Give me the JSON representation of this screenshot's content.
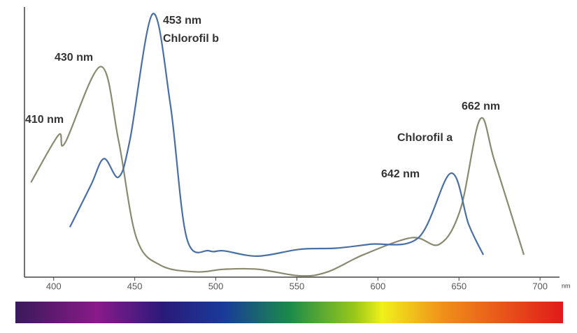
{
  "chart_data": {
    "type": "line",
    "x_label": "nm",
    "xlim": [
      382,
      712
    ],
    "xticks": [
      400,
      450,
      500,
      550,
      600,
      650,
      700
    ],
    "ylim": [
      0,
      100
    ],
    "series": [
      {
        "color": "#8a8a70",
        "x": [
          386,
          403,
          407,
          429,
          440,
          451,
          466,
          488,
          505,
          526,
          552,
          569,
          591,
          621,
          638,
          651,
          663,
          672,
          690
        ],
        "values": [
          36,
          54,
          51,
          80,
          52,
          15,
          4.5,
          2,
          3,
          3,
          0.5,
          2,
          8.5,
          15,
          12.5,
          26,
          60,
          44,
          8.5
        ]
      },
      {
        "color": "#4a6fa5",
        "x": [
          410,
          423,
          431,
          440,
          447,
          461,
          472,
          482,
          496,
          505,
          526,
          552,
          574,
          595,
          625,
          645,
          656,
          665
        ],
        "values": [
          19,
          35,
          45,
          38,
          52,
          100,
          65.5,
          15,
          10,
          10,
          8,
          10.6,
          11,
          12.5,
          15,
          39.5,
          20,
          8.5
        ]
      }
    ],
    "annotations": [
      "410 nm",
      "430 nm",
      "453 nm",
      "Chlorofil b",
      "662 nm",
      "Chlorofil a",
      "642 nm"
    ]
  }
}
